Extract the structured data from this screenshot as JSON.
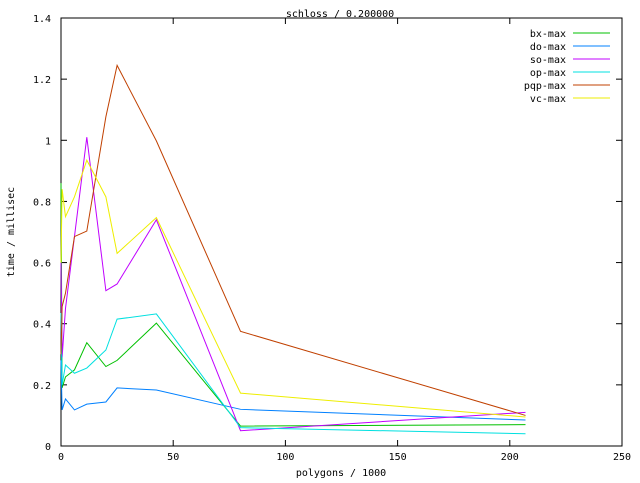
{
  "chart_data": {
    "type": "line",
    "title": "schloss / 0.200000",
    "xlabel": "polygons / 1000",
    "ylabel": "time / millisec",
    "xlim": [
      0,
      250
    ],
    "ylim": [
      0,
      1.4
    ],
    "xticks": [
      0,
      50,
      100,
      150,
      200,
      250
    ],
    "yticks": [
      0,
      0.2,
      0.4,
      0.6,
      0.8,
      1,
      1.2,
      1.4
    ],
    "grid": false,
    "legend_position": "top-right",
    "series": [
      {
        "name": "bx-max",
        "color": "#00c000",
        "x": [
          0,
          0.5,
          2,
          6,
          11.5,
          20,
          25,
          42.5,
          80,
          207
        ],
        "y": [
          0.86,
          0.19,
          0.226,
          0.249,
          0.338,
          0.26,
          0.28,
          0.402,
          0.065,
          0.07
        ]
      },
      {
        "name": "do-max",
        "color": "#0080ff",
        "x": [
          0,
          0.5,
          2,
          6,
          11.5,
          20,
          25,
          42.5,
          80,
          207
        ],
        "y": [
          0.28,
          0.118,
          0.154,
          0.118,
          0.137,
          0.144,
          0.19,
          0.183,
          0.12,
          0.085
        ]
      },
      {
        "name": "so-max",
        "color": "#c000ff",
        "x": [
          0,
          0.5,
          2,
          6,
          11.5,
          20,
          25,
          42.5,
          80,
          207
        ],
        "y": [
          0.6,
          0.29,
          0.45,
          0.685,
          1.01,
          0.508,
          0.53,
          0.74,
          0.05,
          0.11
        ]
      },
      {
        "name": "op-max",
        "color": "#00e0e0",
        "x": [
          0,
          0.5,
          2,
          6,
          11.5,
          20,
          25,
          42.5,
          80,
          207
        ],
        "y": [
          0.435,
          0.2,
          0.265,
          0.238,
          0.255,
          0.314,
          0.415,
          0.432,
          0.06,
          0.04
        ]
      },
      {
        "name": "pqp-max",
        "color": "#c04000",
        "x": [
          0,
          0.5,
          2,
          6,
          11.5,
          20,
          25,
          42.5,
          80,
          207
        ],
        "y": [
          0.3,
          0.456,
          0.5,
          0.685,
          0.703,
          1.077,
          1.245,
          0.998,
          0.375,
          0.1
        ]
      },
      {
        "name": "vc-max",
        "color": "#eeee00",
        "x": [
          0,
          0.5,
          2,
          6,
          11.5,
          20,
          25,
          42.5,
          80,
          207
        ],
        "y": [
          0.6,
          0.84,
          0.75,
          0.815,
          0.935,
          0.815,
          0.63,
          0.747,
          0.173,
          0.095
        ]
      }
    ]
  }
}
